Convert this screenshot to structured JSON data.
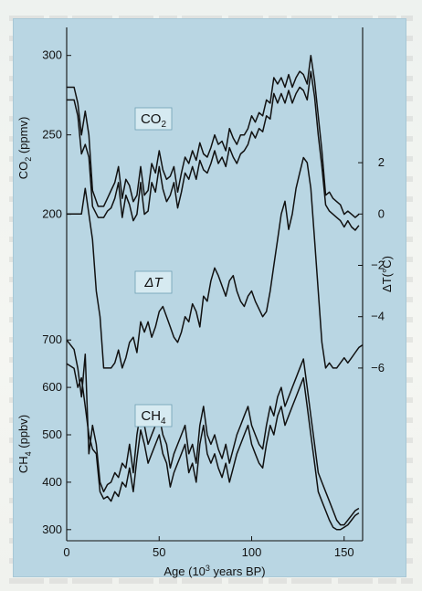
{
  "chart_data": {
    "type": "line",
    "xlabel": "Age (10",
    "xlabel_exp": "3",
    "xlabel_tail": " years BP)",
    "xlim": [
      0,
      160
    ],
    "xticks": [
      0,
      50,
      100,
      150
    ],
    "panels": [
      {
        "id": "co2",
        "label": "CO",
        "label_sub": "2",
        "axis_label": "CO",
        "axis_label_sub": "2",
        "axis_label_tail": " (ppmv)",
        "axis_side": "left",
        "ylim": [
          190,
          305
        ],
        "yticks": [
          200,
          250,
          300
        ],
        "series": [
          {
            "x": [
              0,
              4,
              6,
              8,
              10,
              12,
              14,
              17,
              20,
              22,
              24,
              26,
              28,
              30,
              32,
              34,
              36,
              38,
              40,
              42,
              44,
              46,
              48,
              50,
              52,
              54,
              56,
              58,
              60,
              62,
              64,
              66,
              68,
              70,
              72,
              74,
              76,
              78,
              80,
              82,
              84,
              86,
              88,
              90,
              92,
              94,
              96,
              98,
              100,
              102,
              104,
              106,
              108,
              110,
              112,
              114,
              116,
              118,
              120,
              122,
              124,
              126,
              128,
              130,
              132,
              134,
              136,
              138,
              140,
              142,
              144,
              146,
              148,
              150,
              152,
              154,
              156,
              158
            ],
            "values": [
              280,
              280,
              270,
              250,
              265,
              250,
              215,
              205,
              205,
              210,
              215,
              220,
              230,
              210,
              222,
              218,
              208,
              212,
              230,
              212,
              215,
              232,
              226,
              240,
              228,
              222,
              224,
              230,
              214,
              226,
              236,
              232,
              240,
              234,
              245,
              238,
              236,
              242,
              250,
              244,
              246,
              240,
              254,
              248,
              244,
              250,
              250,
              254,
              262,
              258,
              264,
              262,
              272,
              270,
              286,
              282,
              286,
              280,
              288,
              280,
              286,
              290,
              288,
              282,
              300,
              284,
              262,
              240,
              212,
              214,
              210,
              208,
              206,
              200,
              202,
              200,
              198,
              200
            ]
          },
          {
            "x": [
              0,
              4,
              6,
              8,
              10,
              12,
              14,
              17,
              20,
              22,
              24,
              26,
              28,
              30,
              32,
              34,
              36,
              38,
              40,
              42,
              44,
              46,
              48,
              50,
              52,
              54,
              56,
              58,
              60,
              62,
              64,
              66,
              68,
              70,
              72,
              74,
              76,
              78,
              80,
              82,
              84,
              86,
              88,
              90,
              92,
              94,
              96,
              98,
              100,
              102,
              104,
              106,
              108,
              110,
              112,
              114,
              116,
              118,
              120,
              122,
              124,
              126,
              128,
              130,
              132,
              134,
              136,
              138,
              140,
              142,
              144,
              146,
              148,
              150,
              152,
              154,
              156,
              158
            ],
            "values": [
              272,
              272,
              262,
              238,
              244,
              236,
              205,
              198,
              198,
              202,
              204,
              210,
              220,
              198,
              212,
              206,
              196,
              200,
              220,
              200,
              202,
              220,
              214,
              230,
              216,
              208,
              212,
              220,
              204,
              214,
              226,
              222,
              230,
              222,
              234,
              228,
              226,
              232,
              240,
              232,
              236,
              230,
              242,
              236,
              232,
              238,
              240,
              244,
              252,
              248,
              254,
              252,
              262,
              260,
              276,
              270,
              276,
              270,
              278,
              270,
              276,
              280,
              278,
              272,
              290,
              274,
              250,
              230,
              206,
              202,
              200,
              198,
              196,
              192,
              196,
              192,
              190,
              193
            ]
          }
        ]
      },
      {
        "id": "dt",
        "label": "ΔT",
        "axis_label": "ΔT(°C)",
        "axis_side": "right",
        "ylim": [
          -7,
          3
        ],
        "yticks": [
          2,
          0,
          -2,
          -4,
          -6
        ],
        "series": [
          {
            "x": [
              0,
              4,
              8,
              10,
              12,
              14,
              16,
              18,
              20,
              22,
              24,
              26,
              28,
              30,
              32,
              34,
              36,
              38,
              40,
              42,
              44,
              46,
              48,
              50,
              52,
              54,
              56,
              58,
              60,
              62,
              64,
              66,
              68,
              70,
              72,
              74,
              76,
              78,
              80,
              82,
              84,
              86,
              88,
              90,
              92,
              94,
              96,
              98,
              100,
              102,
              104,
              106,
              108,
              110,
              112,
              114,
              116,
              118,
              120,
              122,
              124,
              126,
              128,
              130,
              132,
              134,
              136,
              138,
              140,
              142,
              144,
              146,
              148,
              150,
              152,
              154,
              156,
              158,
              160
            ],
            "values": [
              0,
              0,
              0,
              1,
              0,
              -1,
              -3,
              -4,
              -6,
              -6,
              -6,
              -5.8,
              -5.3,
              -6,
              -5.6,
              -5,
              -4.8,
              -5.4,
              -4.2,
              -4.6,
              -4.2,
              -4.8,
              -4.4,
              -3.8,
              -3.6,
              -4,
              -4.4,
              -4.8,
              -5,
              -4.6,
              -4,
              -4.2,
              -3.5,
              -3.8,
              -4.4,
              -3.2,
              -3.4,
              -2.6,
              -2.1,
              -2.4,
              -2.8,
              -3.2,
              -2.6,
              -2.4,
              -3,
              -3.4,
              -3.6,
              -3.2,
              -3,
              -3.4,
              -3.7,
              -4,
              -3.8,
              -3,
              -2,
              -1,
              0,
              0.5,
              -0.6,
              0,
              1,
              1.6,
              2.2,
              2,
              1,
              -1,
              -3,
              -5,
              -6,
              -5.8,
              -6,
              -6,
              -5.8,
              -5.6,
              -5.8,
              -5.6,
              -5.4,
              -5.2,
              -5.1
            ]
          }
        ]
      },
      {
        "id": "ch4",
        "label": "CH",
        "label_sub": "4",
        "axis_label": "CH",
        "axis_label_sub": "4",
        "axis_label_tail": " (ppbv)",
        "axis_side": "left",
        "ylim": [
          290,
          710
        ],
        "yticks": [
          300,
          400,
          500,
          600,
          700
        ],
        "series": [
          {
            "x": [
              0,
              4,
              6,
              8,
              10,
              12,
              14,
              16,
              18,
              20,
              22,
              24,
              26,
              28,
              30,
              32,
              34,
              36,
              38,
              40,
              42,
              44,
              46,
              48,
              50,
              52,
              54,
              56,
              58,
              60,
              62,
              64,
              66,
              68,
              70,
              72,
              74,
              76,
              78,
              80,
              82,
              84,
              86,
              88,
              90,
              92,
              94,
              96,
              98,
              100,
              102,
              104,
              106,
              108,
              110,
              112,
              114,
              116,
              118,
              120,
              122,
              124,
              126,
              128,
              130,
              132,
              134,
              136,
              138,
              140,
              142,
              144,
              146,
              148,
              150,
              152,
              154,
              156,
              158
            ],
            "values": [
              700,
              680,
              640,
              580,
              670,
              460,
              520,
              480,
              400,
              380,
              395,
              400,
              420,
              410,
              440,
              430,
              480,
              420,
              500,
              550,
              520,
              480,
              500,
              520,
              540,
              500,
              480,
              430,
              460,
              480,
              500,
              520,
              460,
              480,
              440,
              520,
              560,
              500,
              480,
              500,
              470,
              450,
              480,
              440,
              470,
              500,
              520,
              540,
              560,
              520,
              500,
              480,
              470,
              520,
              560,
              540,
              580,
              600,
              560,
              580,
              600,
              620,
              640,
              660,
              600,
              540,
              480,
              420,
              400,
              380,
              360,
              340,
              320,
              310,
              310,
              320,
              330,
              340,
              345
            ]
          },
          {
            "x": [
              0,
              4,
              6,
              8,
              10,
              12,
              14,
              16,
              18,
              20,
              22,
              24,
              26,
              28,
              30,
              32,
              34,
              36,
              38,
              40,
              42,
              44,
              46,
              48,
              50,
              52,
              54,
              56,
              58,
              60,
              62,
              64,
              66,
              68,
              70,
              72,
              74,
              76,
              78,
              80,
              82,
              84,
              86,
              88,
              90,
              92,
              94,
              96,
              98,
              100,
              102,
              104,
              106,
              108,
              110,
              112,
              114,
              116,
              118,
              120,
              122,
              124,
              126,
              128,
              130,
              132,
              134,
              136,
              138,
              140,
              142,
              144,
              146,
              148,
              150,
              152,
              154,
              156,
              158
            ],
            "values": [
              650,
              640,
              600,
              620,
              560,
              500,
              470,
              460,
              380,
              365,
              370,
              360,
              380,
              370,
              400,
              390,
              430,
              380,
              450,
              510,
              480,
              440,
              460,
              480,
              500,
              460,
              440,
              390,
              420,
              440,
              460,
              480,
              420,
              440,
              400,
              480,
              520,
              460,
              440,
              460,
              430,
              410,
              440,
              400,
              430,
              460,
              480,
              500,
              520,
              480,
              460,
              440,
              430,
              480,
              520,
              500,
              540,
              560,
              520,
              540,
              560,
              580,
              600,
              620,
              560,
              500,
              440,
              380,
              360,
              340,
              320,
              305,
              300,
              300,
              305,
              310,
              320,
              330,
              335
            ]
          }
        ]
      }
    ]
  }
}
